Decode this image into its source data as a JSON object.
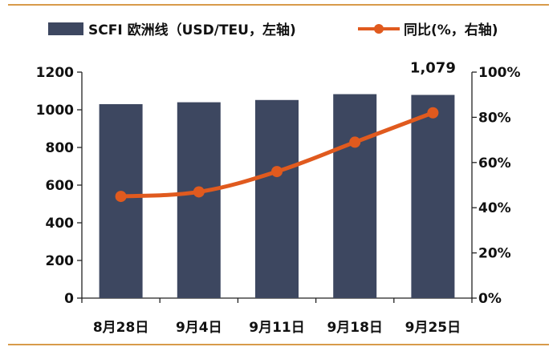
{
  "chart_data": {
    "type": "bar",
    "categories": [
      "8月28日",
      "9月4日",
      "9月11日",
      "9月18日",
      "9月25日"
    ],
    "series": [
      {
        "name": "SCFI 欧洲线（USD/TEU，左轴)",
        "type": "bar",
        "axis": "left",
        "values": [
          1030,
          1040,
          1052,
          1083,
          1079
        ],
        "color": "#3d4760"
      },
      {
        "name": "同比(%，右轴)",
        "type": "line",
        "axis": "right",
        "values": [
          45,
          47,
          56,
          69,
          82
        ],
        "color": "#e05a1e"
      }
    ],
    "y_left": {
      "min": 0,
      "max": 1200,
      "step": 200,
      "tick_labels": [
        "0",
        "200",
        "400",
        "600",
        "800",
        "1000",
        "1200"
      ]
    },
    "y_right": {
      "min": 0,
      "max": 100,
      "step": 20,
      "tick_labels": [
        "0%",
        "20%",
        "40%",
        "60%",
        "80%",
        "100%"
      ]
    },
    "annotations": [
      {
        "category_index": 4,
        "series_index": 0,
        "text": "1,079"
      }
    ],
    "grid": false,
    "legend_position": "top",
    "frame_line_color": "#d89b4a"
  }
}
